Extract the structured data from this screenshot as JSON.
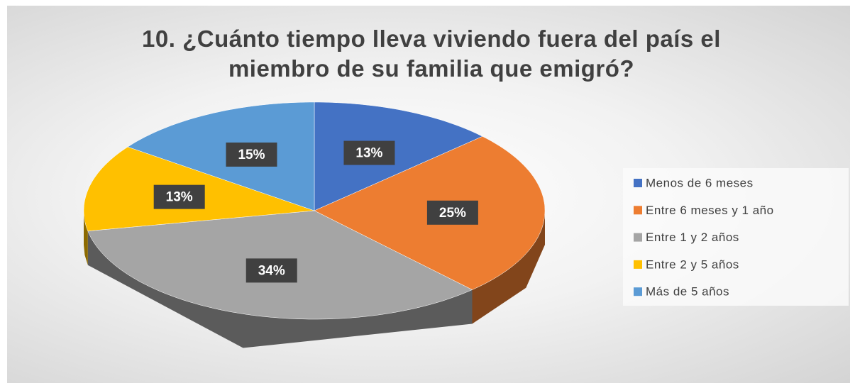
{
  "chart_data": {
    "type": "pie3d",
    "title": "10. ¿Cuánto tiempo lleva viviendo fuera del país el miembro de su familia que emigró?",
    "categories": [
      "Menos de 6 meses",
      "Entre 6 meses y 1 año",
      "Entre 1 y 2 años",
      "Entre 2 y 5 años",
      "Más de 5 años"
    ],
    "values": [
      13,
      25,
      34,
      13,
      15
    ],
    "value_labels": [
      "13%",
      "25%",
      "34%",
      "13%",
      "15%"
    ],
    "colors": [
      "#4472c4",
      "#ed7d31",
      "#a5a5a5",
      "#ffc000",
      "#5b9bd5"
    ],
    "legend": "right"
  }
}
